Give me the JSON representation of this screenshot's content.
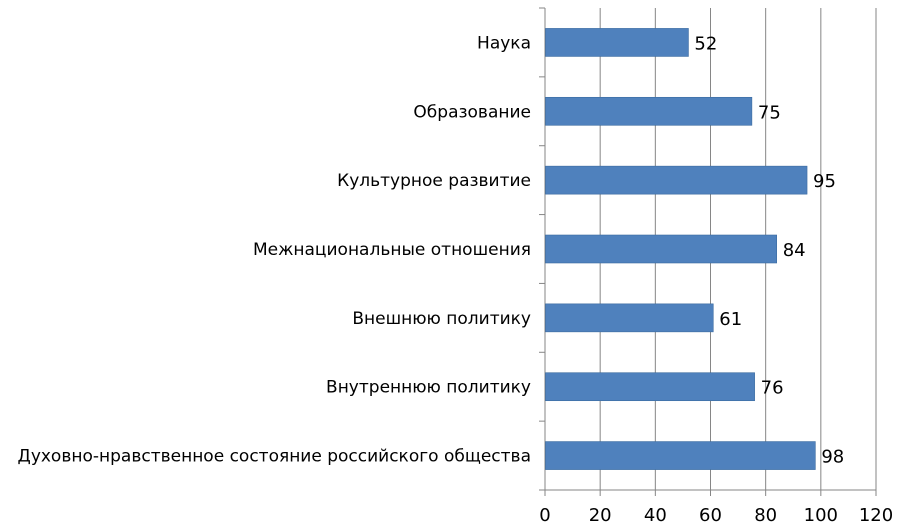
{
  "chart_data": {
    "type": "bar",
    "orientation": "horizontal",
    "categories": [
      "Наука",
      "Образование",
      "Культурное развитие",
      "Межнациональные отношения",
      "Внешнюю политику",
      "Внутреннюю политику",
      "Духовно-нравственное состояние российского общества"
    ],
    "values": [
      52,
      75,
      95,
      84,
      61,
      76,
      98
    ],
    "xlim": [
      0,
      120
    ],
    "xticks": [
      0,
      20,
      40,
      60,
      80,
      100,
      120
    ],
    "grid": true,
    "legend": "none",
    "data_labels": true,
    "colors": {
      "bar": "#4f81bd",
      "bar_edge": "#3a6a9f",
      "grid": "#868686"
    }
  }
}
